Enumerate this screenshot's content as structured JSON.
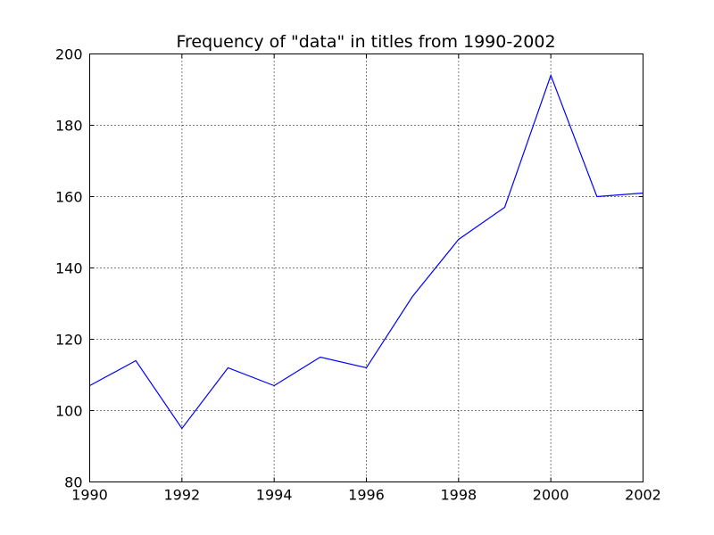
{
  "chart_data": {
    "type": "line",
    "title": "Frequency of \"data\" in titles from 1990-2002",
    "xlabel": "",
    "ylabel": "",
    "x": [
      1990,
      1991,
      1992,
      1993,
      1994,
      1995,
      1996,
      1997,
      1998,
      1999,
      2000,
      2001,
      2002
    ],
    "series": [
      {
        "values": [
          107,
          114,
          95,
          112,
          107,
          115,
          112,
          132,
          148,
          157,
          194,
          160,
          161
        ],
        "color": "#0000ff"
      }
    ],
    "xlim": [
      1990,
      2002
    ],
    "ylim": [
      80,
      200
    ],
    "xticks": [
      "1990",
      "1992",
      "1994",
      "1996",
      "1998",
      "2000",
      "2002"
    ],
    "yticks": [
      "80",
      "100",
      "120",
      "140",
      "160",
      "180",
      "200"
    ],
    "grid": true
  }
}
